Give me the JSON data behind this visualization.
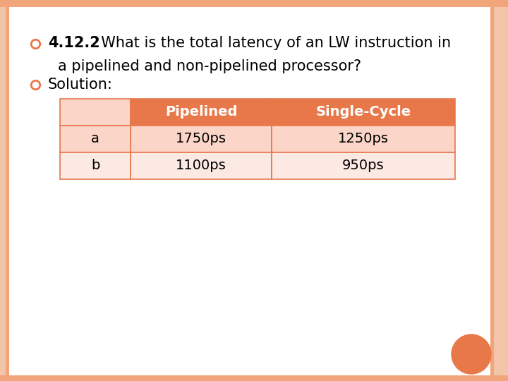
{
  "background_color": "#FFFFFF",
  "page_bg": "#FFFFFF",
  "border_color": "#F2A47A",
  "title_bold": "4.12.2",
  "title_line1_rest": "  What is the total latency of an LW instruction in",
  "title_line2": "    a pipelined and non-pipelined processor?",
  "bullet2": "Solution:",
  "bullet_color": "#E8784A",
  "table_header_bg": "#E8784A",
  "table_header_fg": "#FFFFFF",
  "table_row_a_bg": "#FAD5C8",
  "table_row_b_bg": "#FDE9E4",
  "table_border_color": "#E8784A",
  "table_text_color": "#000000",
  "col_headers": [
    "",
    "Pipelined",
    "Single-Cycle"
  ],
  "rows": [
    [
      "a",
      "1750ps",
      "1250ps"
    ],
    [
      "b",
      "1100ps",
      "950ps"
    ]
  ],
  "orange_circle_color": "#E8784A",
  "outer_border_color": "#F2A47A",
  "left_border_color": "#F2C4A8"
}
